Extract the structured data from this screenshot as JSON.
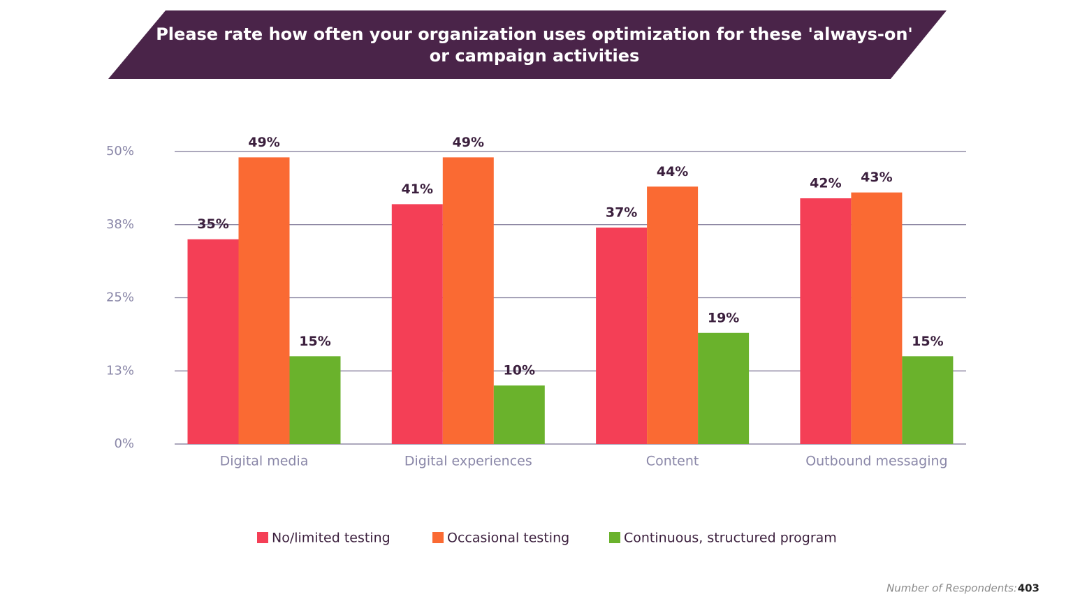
{
  "chart_data": {
    "type": "bar",
    "title": "Please rate how often your organization uses optimization for these 'always-on'",
    "subtitle": "or campaign activities",
    "categories": [
      "Digital media",
      "Digital experiences",
      "Content",
      "Outbound messaging"
    ],
    "series": [
      {
        "name": "No/limited testing",
        "color": "#f43f56",
        "values": [
          35,
          41,
          37,
          42
        ],
        "value_labels": [
          "35%",
          "41%",
          "37%",
          "42%"
        ]
      },
      {
        "name": "Occasional testing",
        "color": "#fa6a33",
        "values": [
          49,
          49,
          44,
          43
        ],
        "value_labels": [
          "49%",
          "49%",
          "44%",
          "43%"
        ]
      },
      {
        "name": "Continuous, structured program",
        "color": "#6ab22c",
        "values": [
          15,
          10,
          19,
          15
        ],
        "value_labels": [
          "15%",
          "10%",
          "19%",
          "15%"
        ]
      }
    ],
    "ylim": [
      0,
      50
    ],
    "yticks": [
      {
        "value": 0,
        "label": "0%"
      },
      {
        "value": 12.5,
        "label": "13%"
      },
      {
        "value": 25,
        "label": "25%"
      },
      {
        "value": 37.5,
        "label": "38%"
      },
      {
        "value": 50,
        "label": "50%"
      }
    ],
    "grid": true,
    "legend": "bottom",
    "footer": {
      "label": "Number of Respondents:",
      "value": "403"
    }
  }
}
